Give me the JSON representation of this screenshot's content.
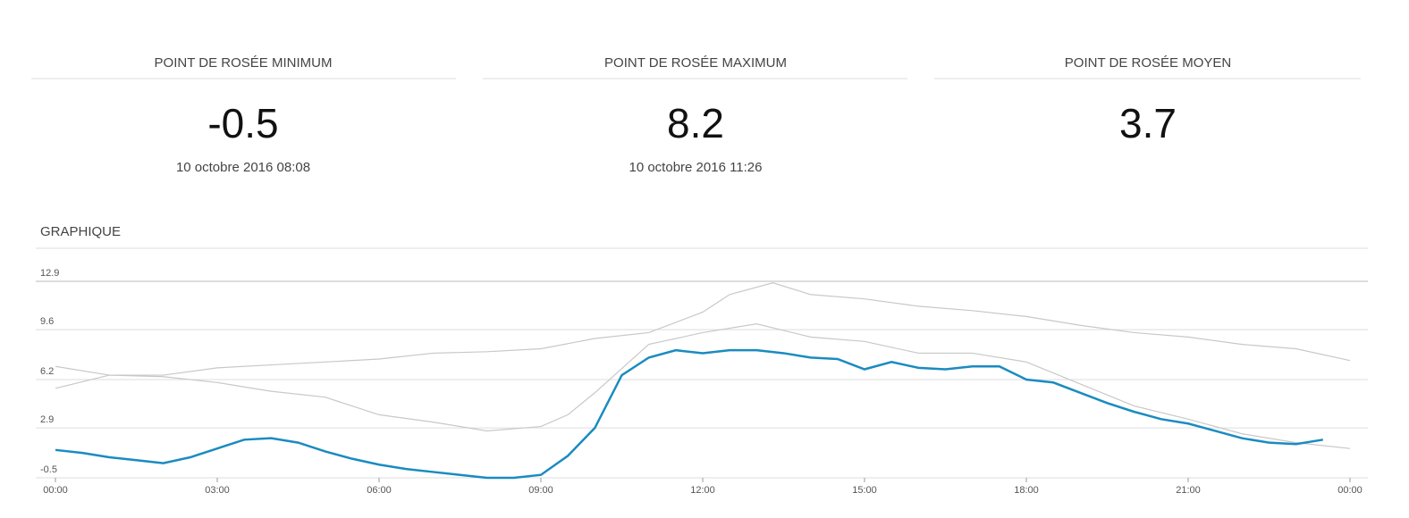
{
  "cards": [
    {
      "title": "POINT DE ROSÉE MINIMUM",
      "value": -0.5,
      "date": "10 octobre 2016 08:08"
    },
    {
      "title": "POINT DE ROSÉE MAXIMUM",
      "value": 8.2,
      "date": "10 octobre 2016 11:26"
    },
    {
      "title": "POINT DE ROSÉE MOYEN",
      "value": 3.7
    }
  ],
  "section_title": "GRAPHIQUE",
  "chart_data": {
    "type": "line",
    "xlim": [
      0,
      24
    ],
    "xticks": [
      {
        "value": 0,
        "label": "00:00"
      },
      {
        "value": 3,
        "label": "03:00"
      },
      {
        "value": 6,
        "label": "06:00"
      },
      {
        "value": 9,
        "label": "09:00"
      },
      {
        "value": 12,
        "label": "12:00"
      },
      {
        "value": 15,
        "label": "15:00"
      },
      {
        "value": 18,
        "label": "18:00"
      },
      {
        "value": 21,
        "label": "21:00"
      },
      {
        "value": 24,
        "label": "00:00"
      }
    ],
    "ylim": [
      -0.5,
      12.9
    ],
    "yticks": [
      -0.5,
      2.9,
      6.2,
      9.6,
      12.9
    ],
    "grid": true,
    "series": [
      {
        "color": "#c8c8c8",
        "x": [
          0,
          1,
          2,
          3,
          4,
          5,
          6,
          7,
          8,
          9,
          10,
          11,
          12,
          12.5,
          13.3,
          14,
          15,
          16,
          17,
          18,
          19,
          20,
          21,
          22,
          23,
          24
        ],
        "values": [
          7.1,
          6.5,
          6.5,
          7.0,
          7.2,
          7.4,
          7.6,
          8.0,
          8.1,
          8.3,
          9.0,
          9.4,
          10.8,
          12.0,
          12.8,
          12.0,
          11.7,
          11.2,
          10.9,
          10.5,
          9.9,
          9.4,
          9.1,
          8.6,
          8.3,
          7.5
        ]
      },
      {
        "color": "#c8c8c8",
        "x": [
          0,
          1,
          2,
          3,
          4,
          5,
          6,
          7,
          8,
          9,
          9.5,
          10,
          11,
          12,
          13,
          14,
          15,
          16,
          17,
          18,
          19,
          20,
          21,
          22,
          23,
          24
        ],
        "values": [
          5.6,
          6.5,
          6.4,
          6.0,
          5.4,
          5.0,
          3.8,
          3.3,
          2.7,
          3.0,
          3.8,
          5.3,
          8.6,
          9.4,
          10.0,
          9.1,
          8.8,
          8.0,
          8.0,
          7.4,
          5.9,
          4.4,
          3.5,
          2.5,
          1.9,
          1.5
        ]
      },
      {
        "color": "#1a8bc0",
        "x": [
          0,
          0.5,
          1,
          1.5,
          2,
          2.5,
          3,
          3.5,
          4,
          4.5,
          5,
          5.5,
          6,
          6.5,
          7,
          7.5,
          8,
          8.5,
          9,
          9.5,
          10,
          10.5,
          11,
          11.5,
          12,
          12.5,
          13,
          13.5,
          14,
          14.5,
          15,
          15.5,
          16,
          16.5,
          17,
          17.5,
          18,
          18.5,
          19,
          19.5,
          20,
          20.5,
          21,
          21.5,
          22,
          22.5,
          23,
          23.5
        ],
        "values": [
          1.4,
          1.2,
          0.9,
          0.7,
          0.5,
          0.9,
          1.5,
          2.1,
          2.2,
          1.9,
          1.3,
          0.8,
          0.4,
          0.1,
          -0.1,
          -0.3,
          -0.5,
          -0.5,
          -0.3,
          1.0,
          2.9,
          6.5,
          7.7,
          8.2,
          8.0,
          8.2,
          8.2,
          8.0,
          7.7,
          7.6,
          6.9,
          7.4,
          7.0,
          6.9,
          7.1,
          7.1,
          6.2,
          6.0,
          5.3,
          4.6,
          4.0,
          3.5,
          3.2,
          2.7,
          2.2,
          1.9,
          1.8,
          2.1
        ]
      }
    ]
  }
}
